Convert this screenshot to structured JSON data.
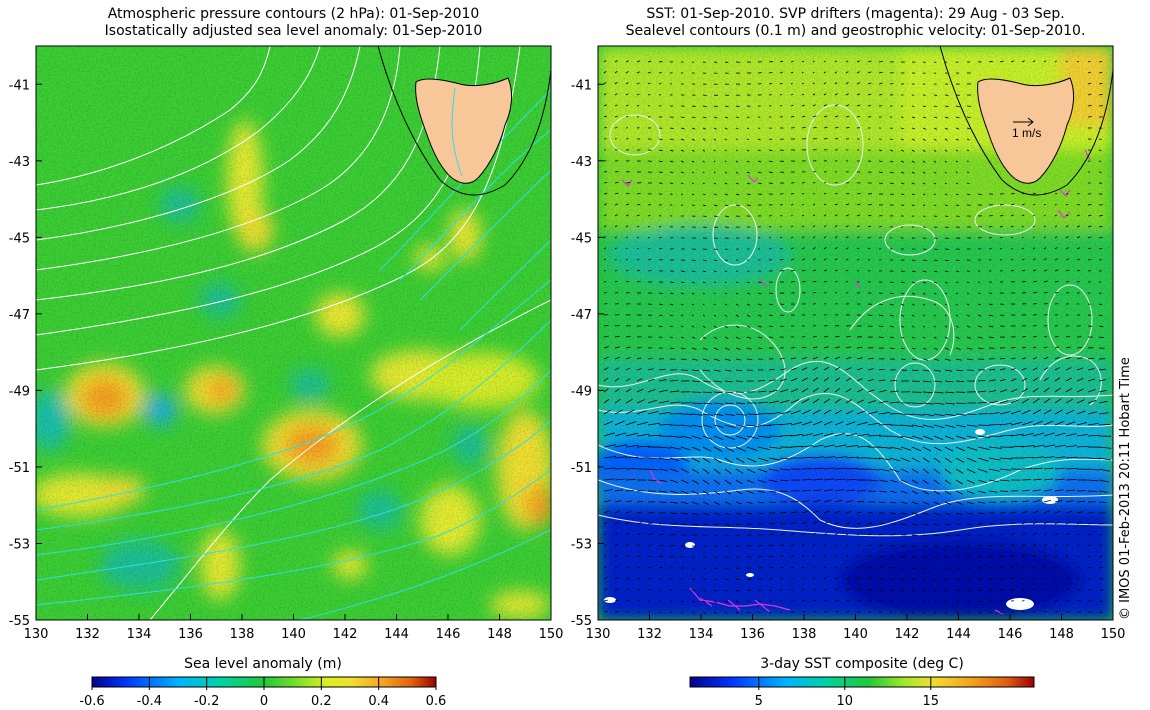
{
  "left_panel": {
    "title_line1": "Atmospheric pressure contours (2 hPa): 01-Sep-2010",
    "title_line2": "Isostatically adjusted sea level anomaly: 01-Sep-2010",
    "x_ticks": [
      "130",
      "132",
      "134",
      "136",
      "138",
      "140",
      "142",
      "144",
      "146",
      "148",
      "150"
    ],
    "y_ticks": [
      "-41",
      "-43",
      "-45",
      "-47",
      "-49",
      "-51",
      "-53",
      "-55"
    ],
    "colorbar_title": "Sea level anomaly (m)",
    "colorbar_ticks": [
      "-0.6",
      "-0.4",
      "-0.2",
      "0",
      "0.2",
      "0.4",
      "0.6"
    ],
    "colorbar_range": [
      -0.6,
      0.6
    ]
  },
  "right_panel": {
    "title_line1": "SST: 01-Sep-2010. SVP drifters (magenta): 29 Aug - 03 Sep.",
    "title_line2": "Sealevel contours (0.1 m) and geostrophic velocity: 01-Sep-2010.",
    "x_ticks": [
      "130",
      "132",
      "134",
      "136",
      "138",
      "140",
      "142",
      "144",
      "146",
      "148",
      "150"
    ],
    "y_ticks": [
      "-41",
      "-43",
      "-45",
      "-47",
      "-49",
      "-51",
      "-53",
      "-55"
    ],
    "colorbar_title": "3-day SST composite (deg C)",
    "colorbar_ticks": [
      "5",
      "10",
      "15"
    ],
    "colorbar_range": [
      1,
      21
    ],
    "velocity_scale_label": "1 m/s"
  },
  "map_extent": {
    "lon": [
      130,
      150
    ],
    "lat": [
      -55,
      -40
    ]
  },
  "credit": "© IMOS 01-Feb-2013 20:11 Hobart Time",
  "colors": {
    "land": "#f7c79a",
    "drifters": "#dd33dd",
    "pressure_contours": "#ffffff",
    "sla_contours": "#33dddd",
    "colormap": [
      "#00008f",
      "#0035ff",
      "#00b4ff",
      "#00d4a0",
      "#22c83a",
      "#54d82a",
      "#b8f020",
      "#f0e030",
      "#f5a020",
      "#e06010",
      "#9e0000"
    ]
  }
}
